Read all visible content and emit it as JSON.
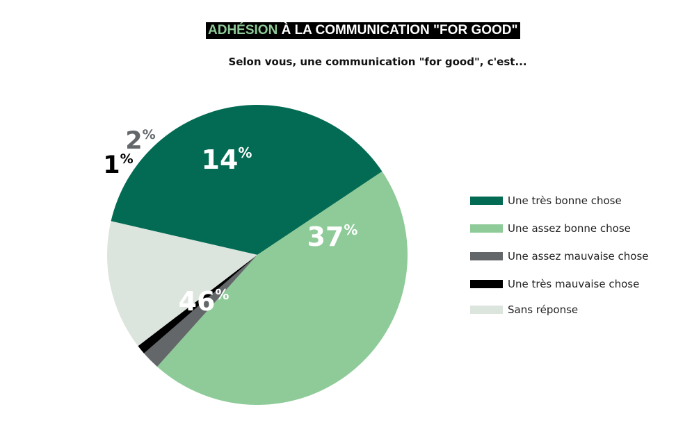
{
  "title": {
    "accent": "ADHÉSION",
    "rest": " À LA COMMUNICATION \"FOR GOOD\""
  },
  "subtitle": "Selon vous, une communication \"for good\", c'est...",
  "chart_data": {
    "type": "pie",
    "title": "ADHÉSION À LA COMMUNICATION \"FOR GOOD\"",
    "subtitle": "Selon vous, une communication \"for good\", c'est...",
    "legend_position": "right",
    "slices": [
      {
        "label": "Une très bonne chose",
        "value": 37,
        "display": "37",
        "unit": "%",
        "color": "#036b53",
        "label_color": "#ffffff"
      },
      {
        "label": "Une assez bonne chose",
        "value": 46,
        "display": "46",
        "unit": "%",
        "color": "#8ecb98",
        "label_color": "#ffffff"
      },
      {
        "label": "Une assez mauvaise chose",
        "value": 2,
        "display": "2",
        "unit": "%",
        "color": "#63676a",
        "label_color": "#63676a"
      },
      {
        "label": "Une très mauvaise chose",
        "value": 1,
        "display": "1",
        "unit": "%",
        "color": "#000000",
        "label_color": "#000000"
      },
      {
        "label": "Sans réponse",
        "value": 14,
        "display": "14",
        "unit": "%",
        "color": "#dce4de",
        "label_color": "#ffffff"
      }
    ]
  }
}
